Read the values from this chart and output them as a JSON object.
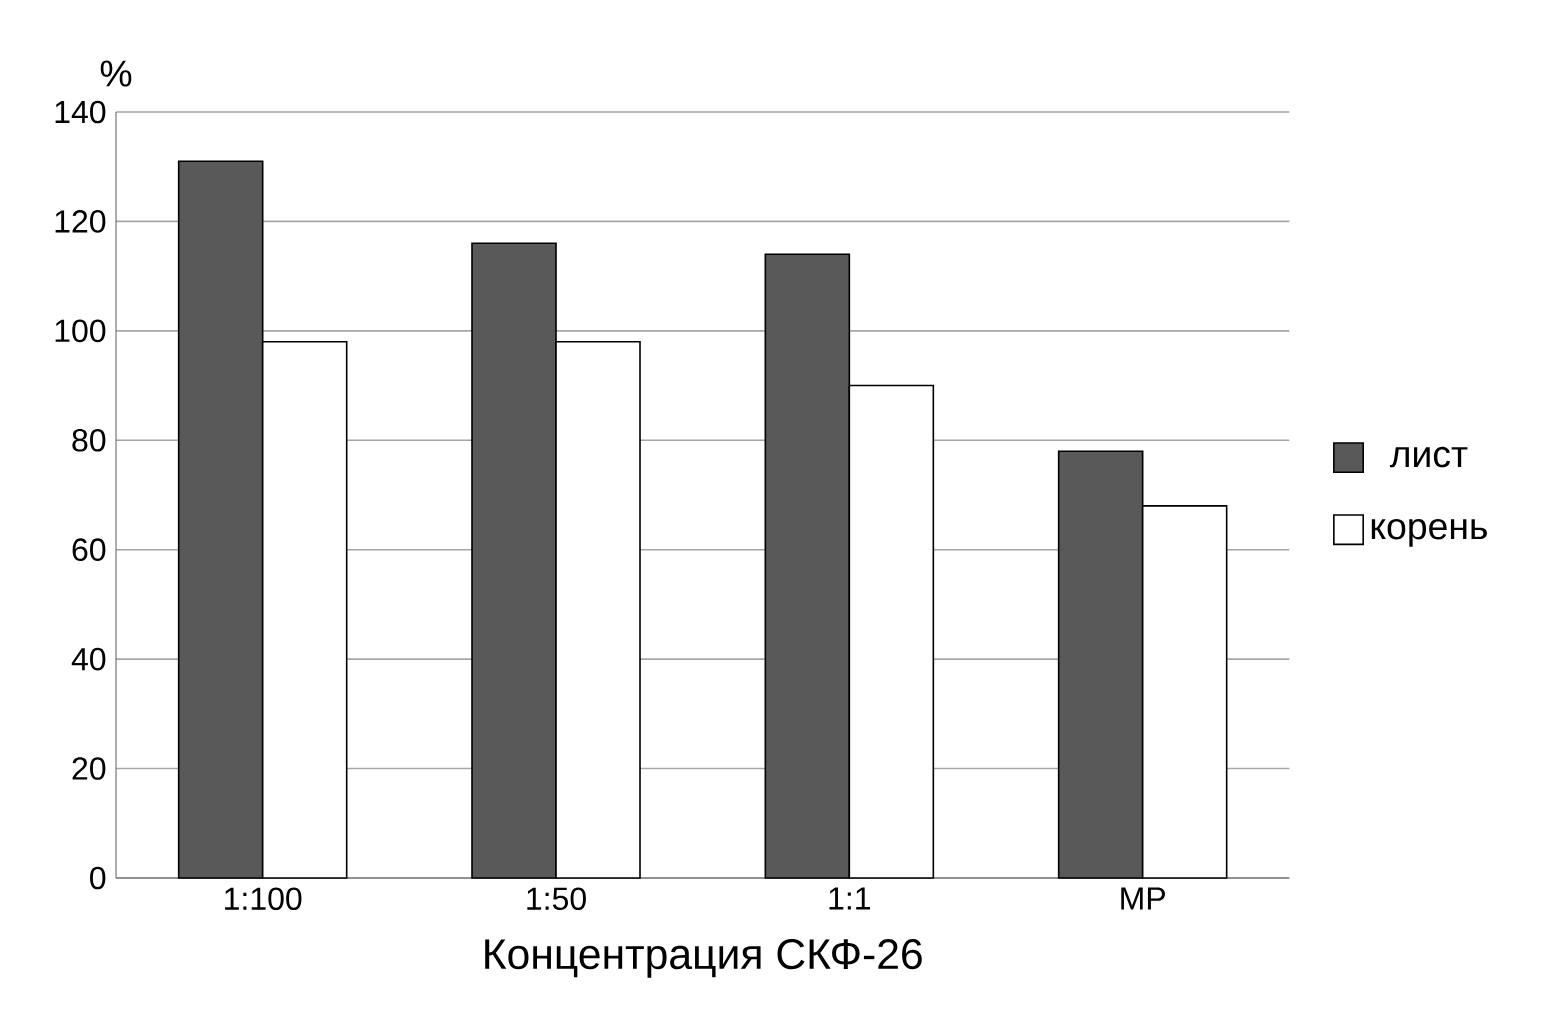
{
  "chart_data": {
    "type": "bar",
    "xlabel": "Концентрация СКФ-26",
    "ylabel": "%",
    "categories": [
      "1:100",
      "1:50",
      "1:1",
      "МР"
    ],
    "series": [
      {
        "name": "лист",
        "color": "#595959",
        "values": [
          131,
          116,
          114,
          78
        ]
      },
      {
        "name": "корень",
        "color": "#ffffff",
        "values": [
          98,
          98,
          90,
          68
        ]
      }
    ],
    "ylim": [
      0,
      140
    ],
    "yticks": [
      0,
      20,
      40,
      60,
      80,
      100,
      120,
      140
    ],
    "grid": "y",
    "legend": "right"
  }
}
